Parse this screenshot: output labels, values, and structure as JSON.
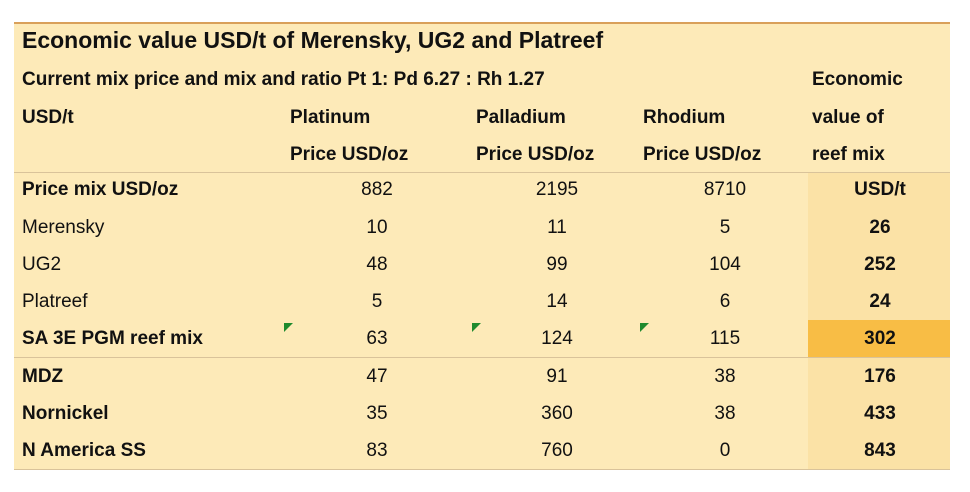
{
  "title": "Economic value USD/t of Merensky, UG2 and Platreef",
  "subtitle": "Current mix price and mix  and ratio Pt 1: Pd 6.27 : Rh 1.27",
  "header": {
    "row_label": "USD/t",
    "columns": [
      [
        "Platinum",
        "Price USD/oz"
      ],
      [
        "Palladium",
        "Price USD/oz"
      ],
      [
        "Rhodium",
        "Price USD/oz"
      ],
      [
        "Economic",
        "value of",
        "reef mix"
      ]
    ]
  },
  "table": {
    "rows": [
      [
        "Price mix USD/oz",
        882,
        2195,
        8710,
        "USD/t"
      ],
      [
        "Merensky",
        10,
        11,
        5,
        26
      ],
      [
        "UG2",
        48,
        99,
        104,
        252
      ],
      [
        "Platreef",
        5,
        14,
        6,
        24
      ],
      [
        "SA 3E PGM reef mix",
        63,
        124,
        115,
        302
      ],
      [
        "MDZ",
        47,
        91,
        38,
        176
      ],
      [
        "Nornickel",
        35,
        360,
        38,
        433
      ],
      [
        "N America SS",
        83,
        760,
        0,
        843
      ]
    ]
  }
}
